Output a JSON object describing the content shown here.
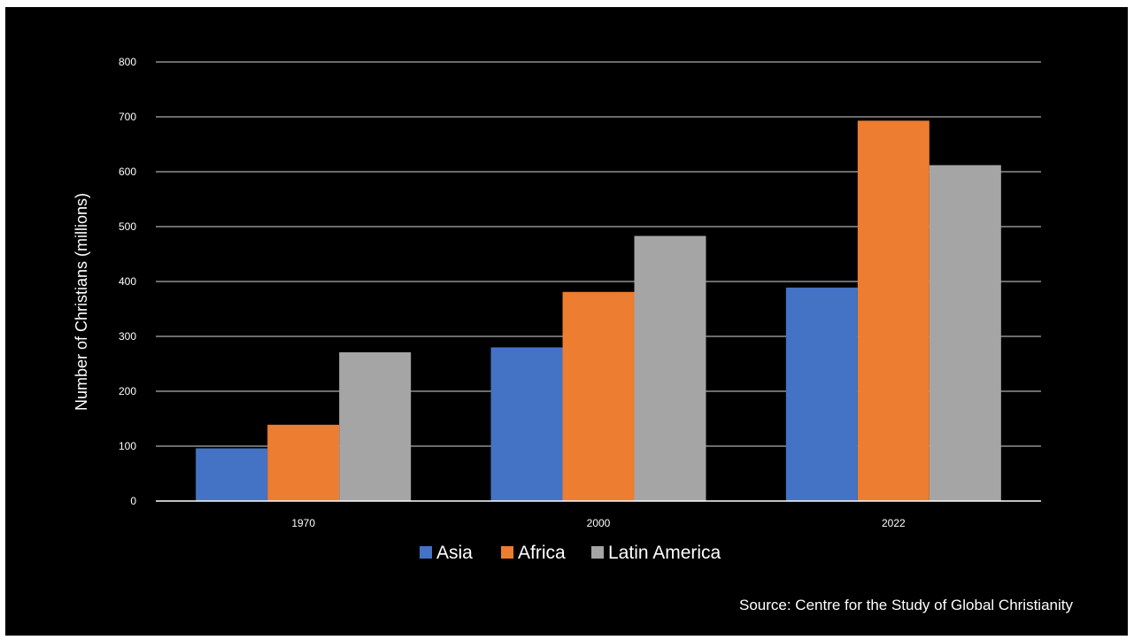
{
  "chart_data": {
    "type": "bar",
    "categories": [
      "1970",
      "2000",
      "2022"
    ],
    "series": [
      {
        "name": "Asia",
        "color": "#4472C4",
        "values": [
          96,
          280,
          389
        ]
      },
      {
        "name": "Africa",
        "color": "#ED7D31",
        "values": [
          139,
          381,
          693
        ]
      },
      {
        "name": "Latin America",
        "color": "#A5A5A5",
        "values": [
          271,
          483,
          612
        ]
      }
    ],
    "ylabel": "Number of Christians (millions)",
    "xlabel": "",
    "ylim": [
      0,
      800
    ],
    "yticks": [
      0,
      100,
      200,
      300,
      400,
      500,
      600,
      700,
      800
    ],
    "grid": true,
    "legend_position": "bottom",
    "background": "#000000"
  },
  "source": "Source: Centre for the Study of Global Christianity"
}
